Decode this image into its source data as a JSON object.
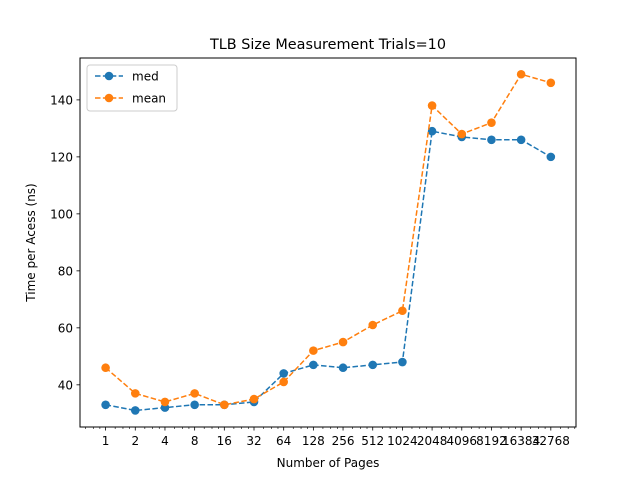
{
  "chart_data": {
    "type": "line",
    "title": "TLB Size Measurement Trials=10",
    "xlabel": "Number of Pages",
    "ylabel": "Time per Acess (ns)",
    "x_scale": "log2",
    "x": [
      1,
      2,
      4,
      8,
      16,
      32,
      64,
      128,
      256,
      512,
      1024,
      2048,
      4096,
      8192,
      16384,
      32768
    ],
    "x_tick_labels": [
      "1",
      "2",
      "4",
      "8",
      "16",
      "32",
      "64",
      "128",
      "256",
      "512",
      "1024",
      "2048",
      "4096",
      "8192",
      "16384",
      "32768"
    ],
    "xlim": [
      0.55,
      59000
    ],
    "ylim": [
      25.2,
      154.7
    ],
    "y_ticks": [
      40,
      60,
      80,
      100,
      120,
      140
    ],
    "grid": false,
    "legend_position": "upper-left",
    "series": [
      {
        "name": "med",
        "color": "#1f77b4",
        "values": [
          33,
          31,
          32,
          33,
          33,
          34,
          44,
          47,
          46,
          47,
          48,
          129,
          127,
          126,
          126,
          120
        ]
      },
      {
        "name": "mean",
        "color": "#ff7f0e",
        "values": [
          46,
          37,
          34,
          37,
          33,
          35,
          41,
          52,
          55,
          61,
          66,
          138,
          128,
          132,
          149,
          146
        ]
      }
    ]
  }
}
